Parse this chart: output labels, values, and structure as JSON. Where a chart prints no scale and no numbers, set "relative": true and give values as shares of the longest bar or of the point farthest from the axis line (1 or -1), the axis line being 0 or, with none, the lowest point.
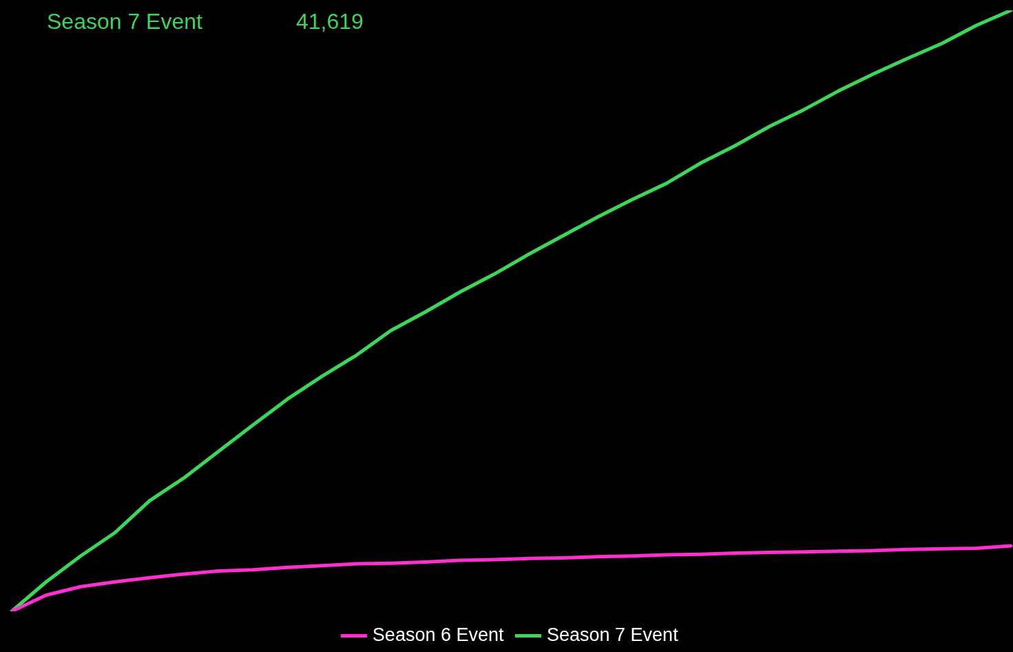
{
  "chart_data": {
    "type": "line",
    "relative": true,
    "annotations": [
      "Season 7 Event",
      "41,619"
    ],
    "categories": [
      null,
      null,
      null,
      null,
      null,
      null,
      null,
      null,
      null,
      null,
      null,
      null,
      null,
      null,
      null,
      null,
      null,
      null,
      null,
      null,
      null,
      null,
      null,
      null,
      null,
      null,
      null,
      null,
      null,
      null
    ],
    "series": [
      {
        "name": "Season 6 Event",
        "color": "#ff2fd0",
        "values": [
          0,
          0.027,
          0.041,
          0.049,
          0.056,
          0.062,
          0.067,
          0.069,
          0.073,
          0.076,
          0.079,
          0.08,
          0.082,
          0.085,
          0.086,
          0.088,
          0.089,
          0.091,
          0.092,
          0.094,
          0.095,
          0.097,
          0.098,
          0.099,
          0.1,
          0.101,
          0.103,
          0.104,
          0.105,
          0.109
        ]
      },
      {
        "name": "Season 7 Event",
        "color": "#3ed65a",
        "values": [
          0,
          0.049,
          0.092,
          0.131,
          0.184,
          0.222,
          0.266,
          0.31,
          0.353,
          0.391,
          0.426,
          0.467,
          0.498,
          0.531,
          0.561,
          0.594,
          0.625,
          0.656,
          0.685,
          0.712,
          0.746,
          0.775,
          0.807,
          0.835,
          0.866,
          0.894,
          0.92,
          0.945,
          0.975,
          1.0
        ]
      }
    ],
    "legend": "bottom",
    "marker": "none",
    "line_style": "solid"
  }
}
